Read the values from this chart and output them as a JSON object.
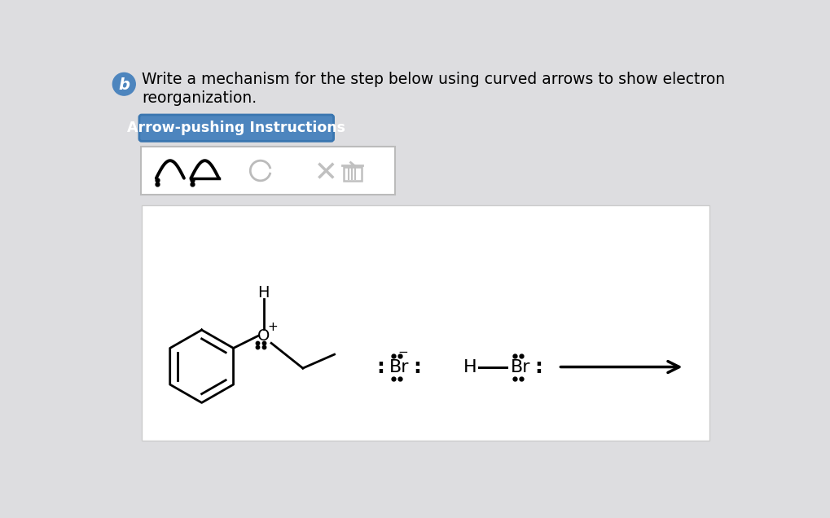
{
  "bg_color": "#dddde0",
  "white_box_color": "#ffffff",
  "title_text_line1": "Write a mechanism for the step below using curved arrows to show electron",
  "title_text_line2": "reorganization.",
  "button_text": "Arrow-pushing Instructions",
  "button_bg": "#4d85be",
  "button_text_color": "#ffffff",
  "b_circle_color": "#4d85be",
  "b_circle_text": "b"
}
